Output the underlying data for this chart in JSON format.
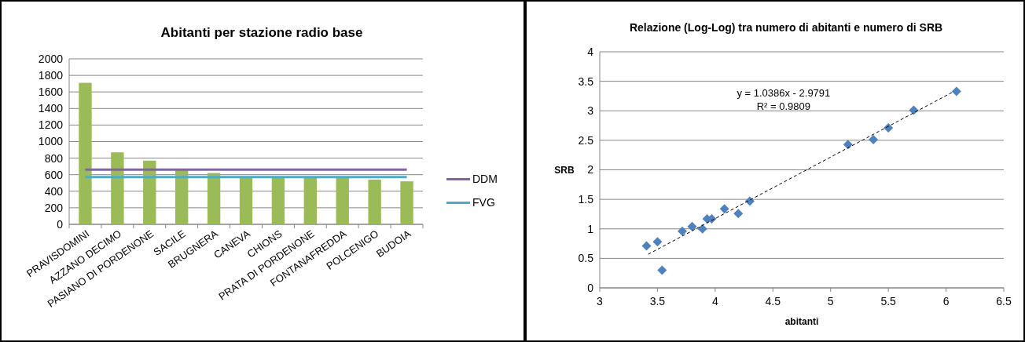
{
  "chart_data": [
    {
      "type": "bar",
      "title": "Abitanti per stazione radio base",
      "categories": [
        "PRAVISDOMINI",
        "AZZANO DECIMO",
        "PASIANO DI PORDENONE",
        "SACILE",
        "BRUGNERA",
        "CANEVA",
        "CHIONS",
        "PRATA DI PORDENONE",
        "FONTANAFREDDA",
        "POLCENIGO",
        "BUDOIA"
      ],
      "series": [
        {
          "type": "bar",
          "color": "#9bbb59",
          "values": [
            1710,
            870,
            770,
            660,
            620,
            580,
            580,
            580,
            580,
            540,
            520
          ]
        },
        {
          "type": "line",
          "name": "DDM",
          "color": "#8064a2",
          "values": [
            660,
            660,
            660,
            660,
            660,
            660,
            660,
            660,
            660,
            660,
            660
          ]
        },
        {
          "type": "line",
          "name": "FVG",
          "color": "#4bacc6",
          "values": [
            570,
            570,
            570,
            570,
            570,
            570,
            570,
            570,
            570,
            570,
            570
          ]
        }
      ],
      "ylim": [
        0,
        2000
      ],
      "yticks": [
        0,
        200,
        400,
        600,
        800,
        1000,
        1200,
        1400,
        1600,
        1800,
        2000
      ],
      "grid": "y",
      "legend": "right"
    },
    {
      "type": "scatter",
      "title": "Relazione (Log-Log) tra numero di abitanti e numero di SRB",
      "xlabel": "abitanti",
      "ylabel": "SRB",
      "series": [
        {
          "type": "scatter",
          "color": "#4f81bd",
          "marker": "diamond",
          "x": [
            3.405,
            3.5,
            3.54,
            3.715,
            3.8,
            3.89,
            3.93,
            3.97,
            4.08,
            4.2,
            4.3,
            5.15,
            5.37,
            5.5,
            5.72,
            6.09
          ],
          "values": [
            0.71,
            0.78,
            0.3,
            0.96,
            1.04,
            1.0,
            1.17,
            1.17,
            1.34,
            1.26,
            1.47,
            2.43,
            2.51,
            2.71,
            3.01,
            3.33
          ]
        },
        {
          "type": "line",
          "color": "#000000",
          "line_style": "dashed",
          "x": [
            3.42,
            6.07
          ],
          "values": [
            0.57,
            3.33
          ]
        }
      ],
      "annotations": [
        "y = 1.0386x - 2.9791",
        "R² = 0.9809"
      ],
      "xlim": [
        3,
        6.5
      ],
      "xticks": [
        3,
        3.5,
        4,
        4.5,
        5,
        5.5,
        6,
        6.5
      ],
      "ylim": [
        0,
        4
      ],
      "yticks": [
        0,
        0.5,
        1,
        1.5,
        2,
        2.5,
        3,
        3.5,
        4
      ],
      "grid": "y",
      "legend": false
    }
  ]
}
